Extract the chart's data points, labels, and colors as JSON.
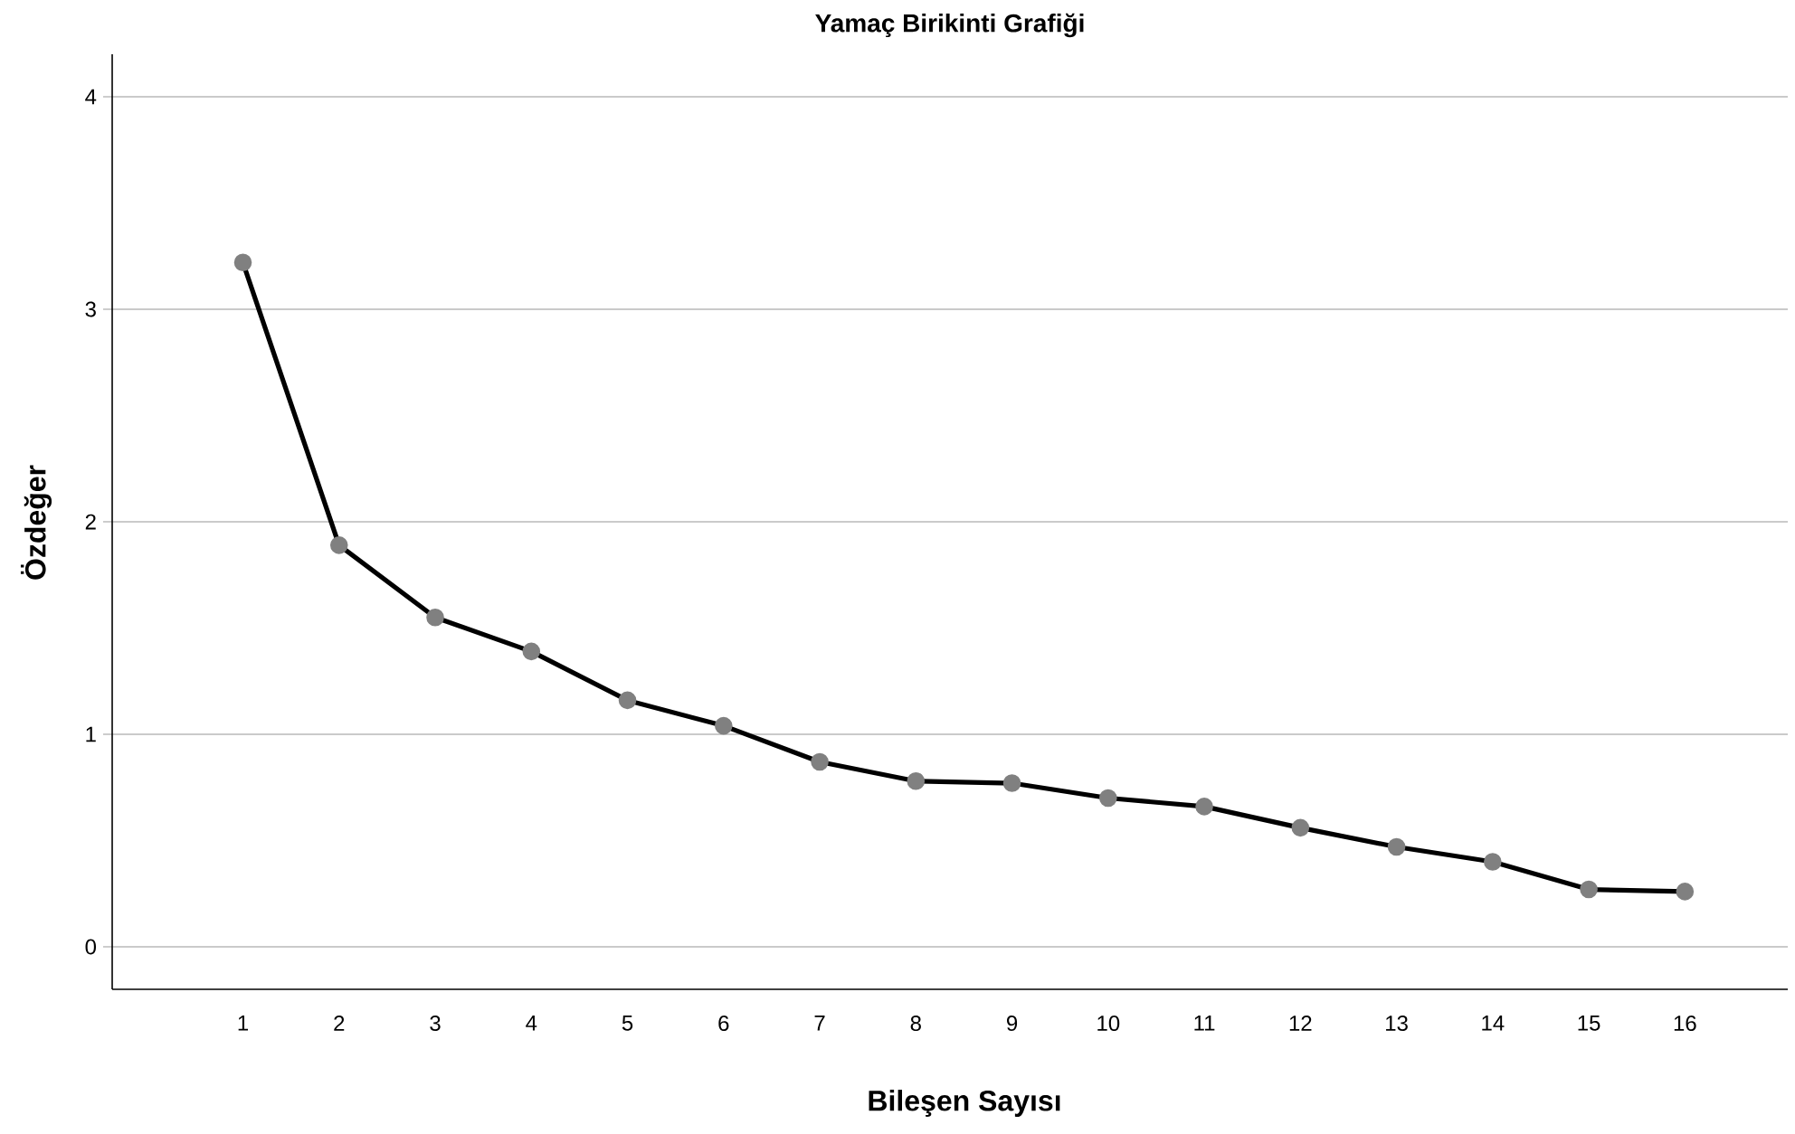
{
  "chart_data": {
    "type": "line",
    "title": "Yamaç Birikinti Grafiği",
    "xlabel": "Bileşen Sayısı",
    "ylabel": "Özdeğer",
    "categories": [
      "1",
      "2",
      "3",
      "4",
      "5",
      "6",
      "7",
      "8",
      "9",
      "10",
      "11",
      "12",
      "13",
      "14",
      "15",
      "16"
    ],
    "series": [
      {
        "color": "#000000",
        "values": [
          3.22,
          1.89,
          1.55,
          1.39,
          1.16,
          1.04,
          0.87,
          0.78,
          0.77,
          0.7,
          0.66,
          0.56,
          0.47,
          0.4,
          0.27,
          0.26
        ]
      }
    ],
    "ylim": [
      -0.2,
      4.2
    ],
    "yticks": [
      0,
      1,
      2,
      3,
      4
    ],
    "grid": "y",
    "marker": "circle",
    "line_style": "solid"
  }
}
